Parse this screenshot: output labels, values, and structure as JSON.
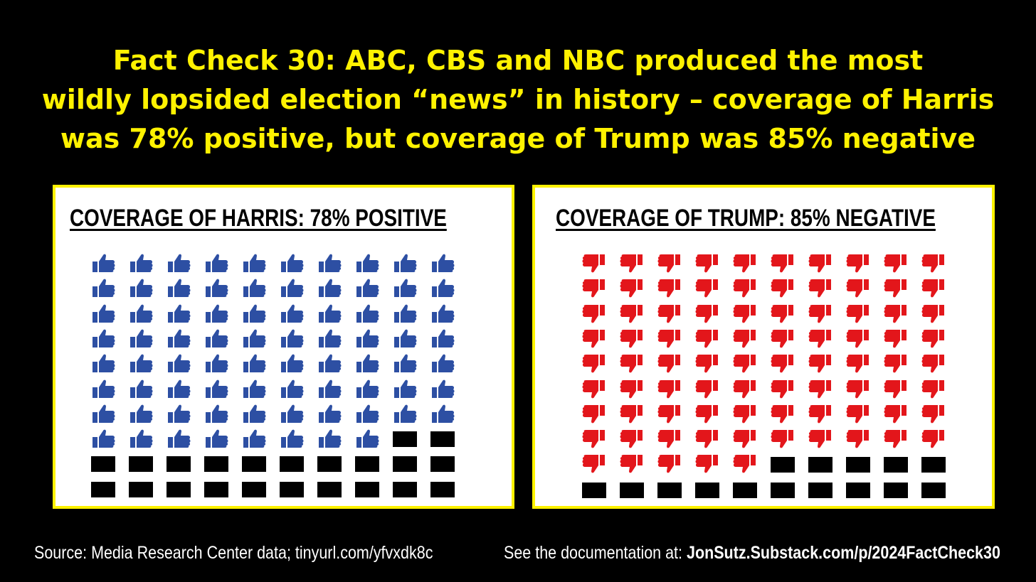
{
  "headline": [
    "Fact Check 30: ABC, CBS and NBC produced the most",
    "wildly lopsided election “news” in history – coverage of Harris",
    "was 78% positive, but coverage of Trump was 85% negative"
  ],
  "colors": {
    "accent": "#FFF200",
    "positive": "#2D4FA3",
    "negative": "#E3161B",
    "empty": "#000000"
  },
  "chart_data": [
    {
      "type": "waffle",
      "title": "COVERAGE OF HARRIS: 78% POSITIVE",
      "total": 100,
      "filled": 78,
      "icon": "thumbs-up-icon",
      "grid": {
        "rows": 10,
        "cols": 10
      }
    },
    {
      "type": "waffle",
      "title": "COVERAGE OF TRUMP: 85% NEGATIVE",
      "total": 100,
      "filled": 85,
      "icon": "thumbs-down-icon",
      "grid": {
        "rows": 10,
        "cols": 10
      }
    }
  ],
  "footer": {
    "source": "Source: Media Research Center data; tinyurl.com/yfvxdk8c",
    "doc_prefix": "See the documentation at: ",
    "doc_link": "JonSutz.Substack.com/p/2024FactCheck30"
  }
}
